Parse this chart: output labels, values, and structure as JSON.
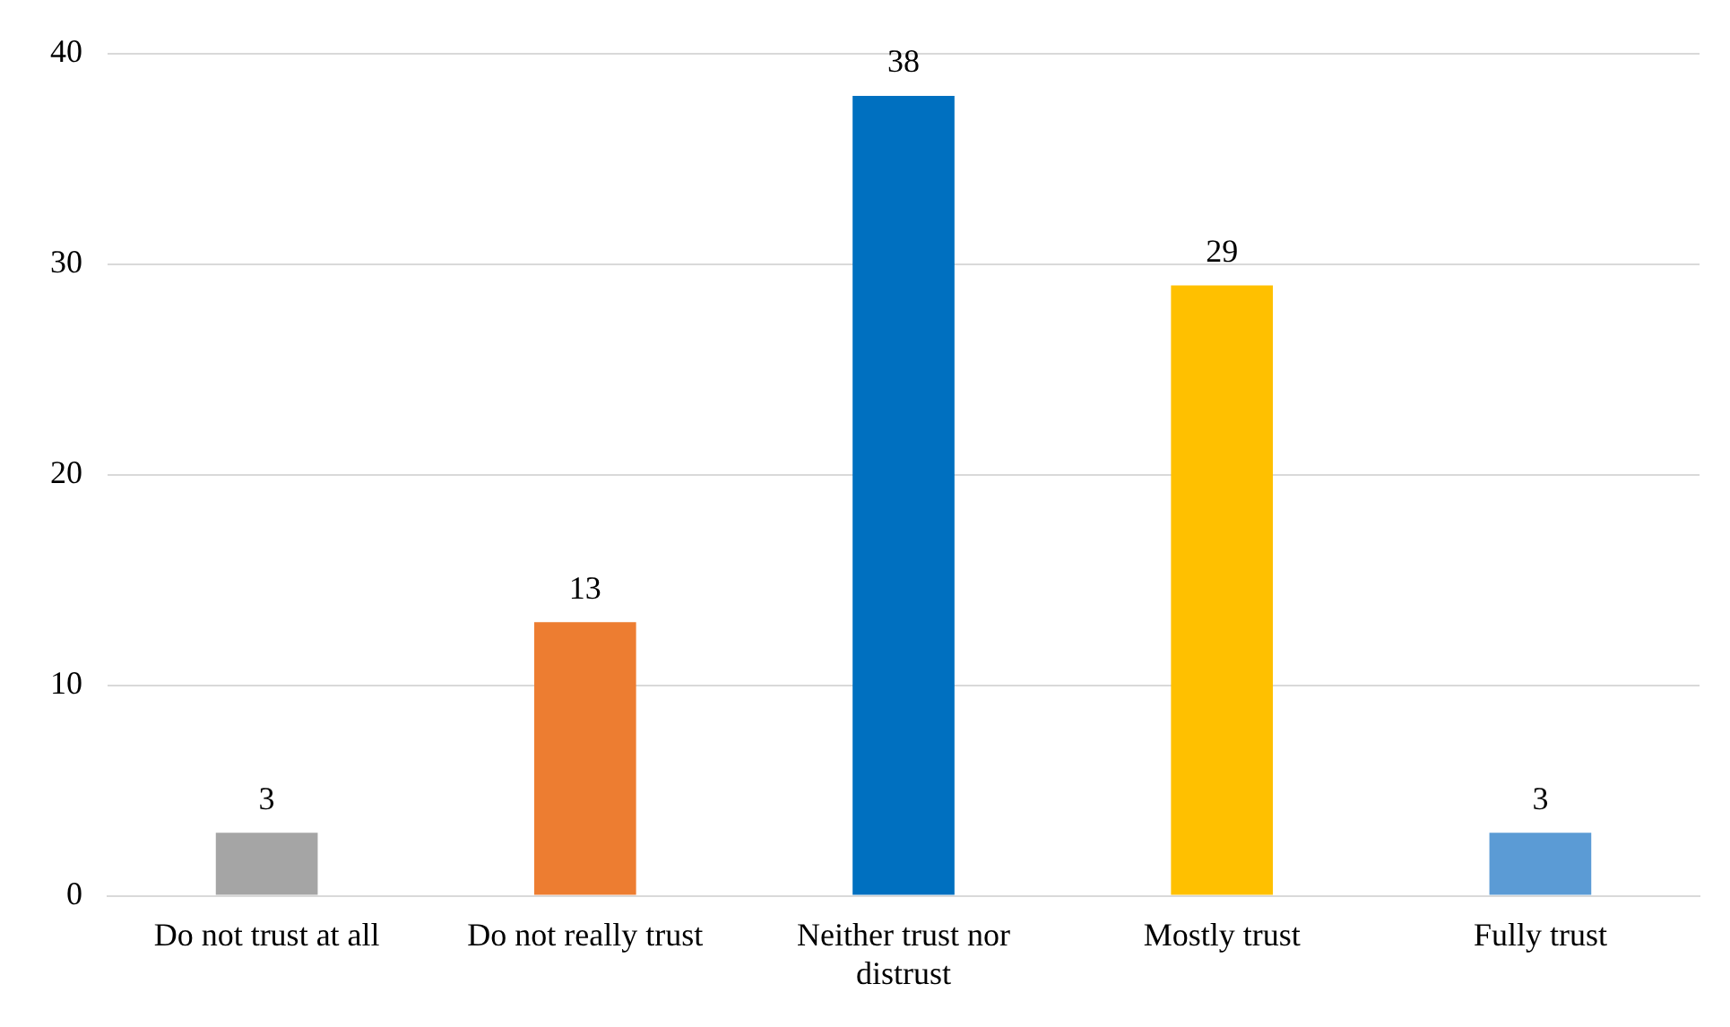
{
  "chart_data": {
    "type": "bar",
    "categories": [
      "Do not trust at all",
      "Do not really trust",
      "Neither trust nor distrust",
      "Mostly trust",
      "Fully trust"
    ],
    "values": [
      3,
      13,
      38,
      29,
      3
    ],
    "colors": [
      "#a5a5a5",
      "#ed7d31",
      "#0070c0",
      "#ffc000",
      "#5b9bd5"
    ],
    "ylim": [
      0,
      40
    ],
    "yticks": [
      0,
      10,
      20,
      30,
      40
    ],
    "grid": "y",
    "data_labels": true,
    "legend": false
  }
}
